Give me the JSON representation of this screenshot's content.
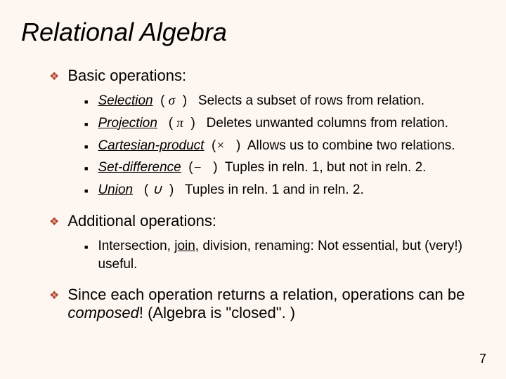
{
  "title": "Relational Algebra",
  "sections": [
    {
      "header": "Basic operations:",
      "items": [
        {
          "name": "Selection",
          "symbol": "σ",
          "desc": "Selects a subset of rows from relation."
        },
        {
          "name": "Projection",
          "symbol": "π",
          "desc": "Deletes unwanted columns from relation."
        },
        {
          "name": "Cartesian-product",
          "symbol": "×",
          "desc": "Allows us to combine two relations."
        },
        {
          "name": "Set-difference",
          "symbol": "−",
          "desc": "Tuples in reln. 1, but not in reln. 2."
        },
        {
          "name": "Union",
          "symbol": "∪",
          "desc": "Tuples in reln. 1 and in reln. 2."
        }
      ]
    },
    {
      "header": "Additional operations:",
      "items": [
        {
          "text_parts": {
            "prefix": "Intersection, ",
            "join": "join",
            "suffix": ", division, renaming:  Not essential, but (very!) useful."
          }
        }
      ]
    }
  ],
  "closing": {
    "prefix": "Since each operation returns a relation, operations can be ",
    "composed": "composed",
    "suffix": "! (Algebra is \"closed\". )"
  },
  "page_number": "7",
  "colors": {
    "background": "#fef6f0",
    "bullet": "#b04830",
    "text": "#000000"
  }
}
